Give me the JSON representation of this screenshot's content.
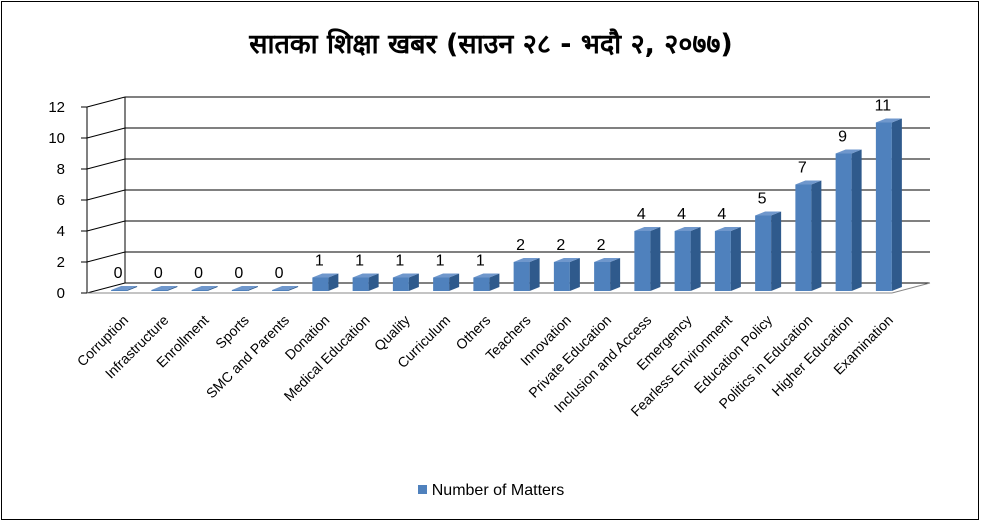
{
  "title": "सातका शिक्षा खबर (साउन २८ - भदौ २, २०७७)",
  "chart_data": {
    "type": "bar",
    "title": "सातका शिक्षा खबर (साउन २८ - भदौ २, २०७७)",
    "categories": [
      "Corruption",
      "Infrastructure",
      "Enrollment",
      "Sports",
      "SMC and Parents",
      "Donation",
      "Medical Education",
      "Quality",
      "Curriculum",
      "Others",
      "Teachers",
      "Innovation",
      "Private Education",
      "Inclusion and Access",
      "Emergency",
      "Fearless Environment",
      "Education Policy",
      "Politics in Education",
      "Higher Education",
      "Examination"
    ],
    "series": [
      {
        "name": "Number of Matters",
        "values": [
          0,
          0,
          0,
          0,
          0,
          1,
          1,
          1,
          1,
          1,
          2,
          2,
          2,
          4,
          4,
          4,
          5,
          7,
          9,
          11
        ]
      }
    ],
    "yticks": [
      0,
      2,
      4,
      6,
      8,
      10,
      12
    ],
    "ylim": [
      0,
      12
    ],
    "xlabel": "",
    "ylabel": "",
    "grid": true,
    "legend": "bottom",
    "colors": {
      "bar_front": "#4f81bd",
      "bar_side": "#2f5a8c",
      "bar_top": "#6f97cc"
    }
  }
}
